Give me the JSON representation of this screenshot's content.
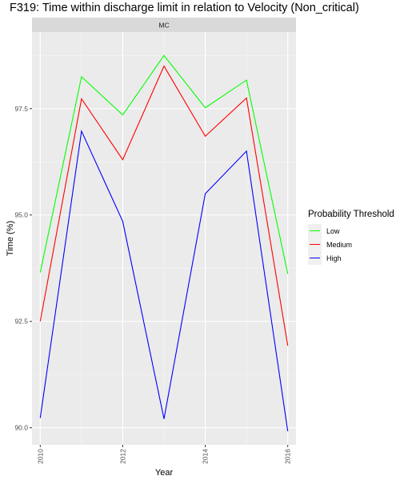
{
  "chart_data": {
    "type": "line",
    "title": "F319: Time within discharge limit in relation to Velocity (Non_critical)",
    "facet": "MC",
    "xlabel": "Year",
    "ylabel": "Time (%)",
    "x": [
      2010,
      2011,
      2012,
      2013,
      2014,
      2015,
      2016
    ],
    "xlim": [
      2009.8,
      2016.2
    ],
    "ylim": [
      89.6,
      99.3
    ],
    "xticks": [
      "2010",
      "2012",
      "2014",
      "2016"
    ],
    "yticks": [
      "90.0",
      "92.5",
      "95.0",
      "97.5"
    ],
    "grid": true,
    "legend_title": "Probability Threshold",
    "legend_position": "right",
    "series": [
      {
        "name": "Low",
        "color": "#00ff00",
        "values": [
          93.65,
          98.25,
          97.35,
          98.75,
          97.52,
          98.17,
          93.62
        ]
      },
      {
        "name": "Medium",
        "color": "#ff0000",
        "values": [
          92.5,
          97.73,
          96.3,
          98.5,
          96.85,
          97.75,
          91.93
        ]
      },
      {
        "name": "High",
        "color": "#0000ff",
        "values": [
          90.23,
          96.97,
          94.85,
          90.21,
          95.5,
          96.5,
          89.92
        ]
      }
    ]
  }
}
